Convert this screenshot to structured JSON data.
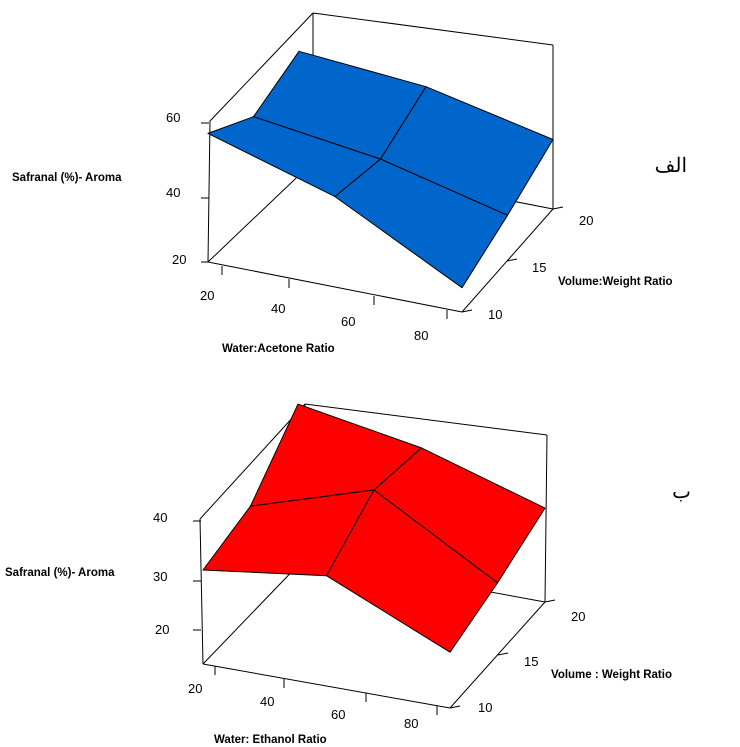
{
  "chart_data": [
    {
      "type": "surface3d",
      "panel_label": "الف",
      "title": "",
      "xlabel": "Water:Acetone Ratio",
      "ylabel": "Volume:Weight Ratio",
      "zlabel": "Safranal (%)- Aroma",
      "x_ticks": [
        "20",
        "40",
        "60",
        "80"
      ],
      "y_ticks": [
        "10",
        "15",
        "20"
      ],
      "z_ticks": [
        "20",
        "40",
        "60"
      ],
      "xlim": [
        20,
        80
      ],
      "ylim": [
        10,
        20
      ],
      "zlim": [
        20,
        60
      ],
      "x": [
        20,
        50,
        80
      ],
      "y": [
        10,
        15,
        20
      ],
      "z": [
        [
          57,
          47,
          51
        ],
        [
          46,
          42,
          48
        ],
        [
          27,
          33,
          40
        ]
      ],
      "surface_color": "#0066cc"
    },
    {
      "type": "surface3d",
      "panel_label": "ب",
      "title": "",
      "xlabel": "Water: Ethanol  Ratio",
      "ylabel": "Volume : Weight Ratio",
      "zlabel": "Safranal (%)- Aroma",
      "x_ticks": [
        "20",
        "40",
        "60",
        "80"
      ],
      "y_ticks": [
        "10",
        "15",
        "20"
      ],
      "z_ticks": [
        "20",
        "30",
        "40"
      ],
      "xlim": [
        20,
        80
      ],
      "ylim": [
        10,
        20
      ],
      "zlim": [
        20,
        40
      ],
      "x": [
        20,
        50,
        80
      ],
      "y": [
        10,
        15,
        20
      ],
      "z": [
        [
          31,
          33,
          42
        ],
        [
          34,
          40,
          38
        ],
        [
          24,
          27,
          31
        ]
      ],
      "surface_color": "#ff0000"
    }
  ]
}
